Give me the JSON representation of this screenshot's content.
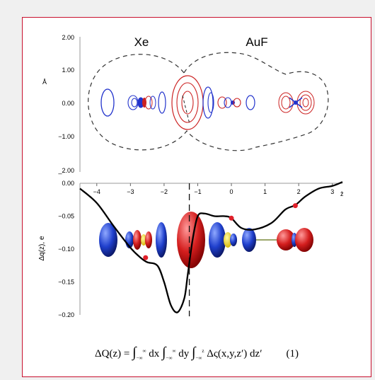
{
  "top_panel": {
    "labels": [
      "Xe",
      "AuF"
    ],
    "y_unit": "Å",
    "y_ticks": [
      "2.00",
      "1.00",
      "0.00",
      "−1.00",
      "_2.00"
    ],
    "y_values": [
      2,
      1,
      0,
      -1,
      -2
    ],
    "contour_colors": {
      "positive": "#cc2222",
      "negative": "#2233cc",
      "boundary": "#333333"
    }
  },
  "bottom_panel": {
    "ylabel": "Δq(z), e",
    "x_ticks": [
      "−4",
      "−3",
      "−2",
      "−1",
      "0",
      "1",
      "2",
      "3"
    ],
    "x_values": [
      -4,
      -3,
      -2,
      -1,
      0,
      1,
      2,
      3
    ],
    "x_axis_end_label": "ẑ",
    "y_ticks": [
      "0.00",
      "−0.05",
      "−0.10",
      "−0.15",
      "−0.20"
    ],
    "y_values": [
      0,
      -0.05,
      -0.1,
      -0.15,
      -0.2
    ]
  },
  "chart_data": {
    "type": "line",
    "ylabel": "Δq(z), e",
    "xlim": [
      -4.5,
      3.3
    ],
    "ylim": [
      -0.2,
      0.0
    ],
    "divider_x": -1.25,
    "series": [
      {
        "x": [
          -4.5,
          -4.0,
          -3.5,
          -3.0,
          -2.7,
          -2.5,
          -2.2,
          -2.0,
          -1.8,
          -1.6,
          -1.4,
          -1.3,
          -1.15,
          -1.0,
          -0.8,
          -0.5,
          -0.2,
          0.0,
          0.3,
          0.7,
          1.2,
          1.6,
          1.9,
          2.2,
          2.6,
          3.0,
          3.3
        ],
        "y": [
          -0.008,
          -0.03,
          -0.065,
          -0.098,
          -0.113,
          -0.12,
          -0.125,
          -0.15,
          -0.185,
          -0.196,
          -0.175,
          -0.14,
          -0.085,
          -0.05,
          -0.046,
          -0.05,
          -0.05,
          -0.053,
          -0.068,
          -0.07,
          -0.06,
          -0.04,
          -0.033,
          -0.02,
          -0.008,
          -0.004,
          0.002
        ]
      }
    ],
    "markers": [
      {
        "x": -2.55,
        "y": -0.113
      },
      {
        "x": 0.0,
        "y": -0.053
      },
      {
        "x": 1.9,
        "y": -0.034
      }
    ]
  },
  "formula": {
    "lhs": "ΔQ(z) = ",
    "i1": "∫",
    "lim1_top": "∞",
    "lim1_bot": "−∞",
    "d1": " dx ",
    "i2": "∫",
    "lim2_top": "∞",
    "lim2_bot": "−∞",
    "d2": " dy ",
    "i3": "∫",
    "lim3_top": "z",
    "lim3_bot": "−∞",
    "body": " Δς(x,y,z′) dz′",
    "number": "(1)"
  }
}
